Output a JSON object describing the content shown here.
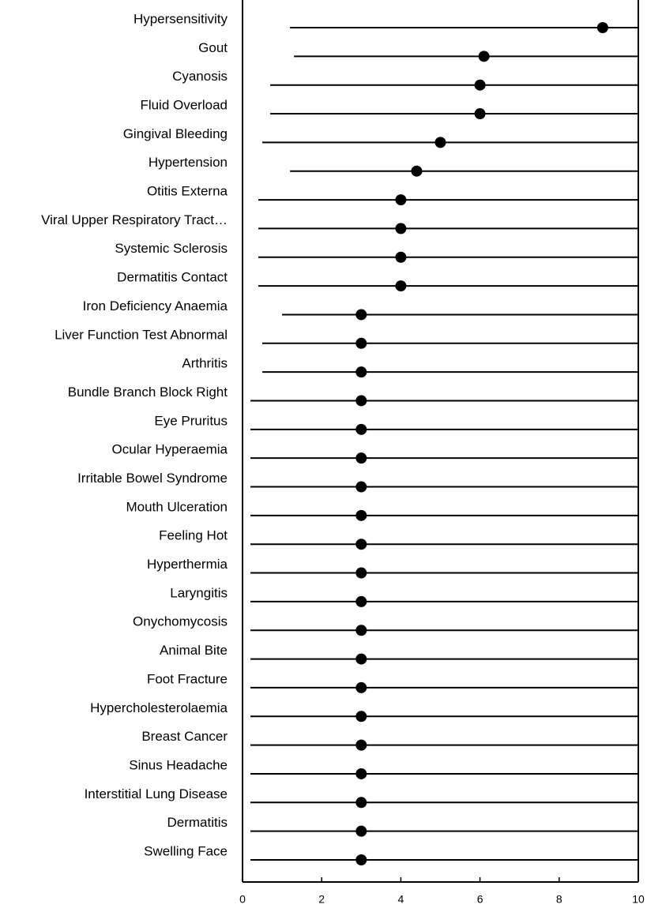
{
  "chart_data": {
    "type": "dot",
    "categories": [
      "Hypersensitivity",
      "Gout",
      "Cyanosis",
      "Fluid Overload",
      "Gingival Bleeding",
      "Hypertension",
      "Otitis Externa",
      "Viral Upper Respiratory Tract…",
      "Systemic Sclerosis",
      "Dermatitis Contact",
      "Iron Deficiency Anaemia",
      "Liver Function Test Abnormal",
      "Arthritis",
      "Bundle Branch Block Right",
      "Eye Pruritus",
      "Ocular Hyperaemia",
      "Irritable Bowel Syndrome",
      "Mouth Ulceration",
      "Feeling Hot",
      "Hyperthermia",
      "Laryngitis",
      "Onychomycosis",
      "Animal Bite",
      "Foot Fracture",
      "Hypercholesterolaemia",
      "Breast Cancer",
      "Sinus Headache",
      "Interstitial Lung Disease",
      "Dermatitis",
      "Swelling Face"
    ],
    "values": [
      9.1,
      6.1,
      6.0,
      6.0,
      5.0,
      4.4,
      4.0,
      4.0,
      4.0,
      4.0,
      3.0,
      3.0,
      3.0,
      3.0,
      3.0,
      3.0,
      3.0,
      3.0,
      3.0,
      3.0,
      3.0,
      3.0,
      3.0,
      3.0,
      3.0,
      3.0,
      3.0,
      3.0,
      3.0,
      3.0
    ],
    "lower": [
      1.2,
      1.3,
      0.7,
      0.7,
      0.5,
      1.2,
      0.4,
      0.4,
      0.4,
      0.4,
      1.0,
      0.5,
      0.5,
      0.2,
      0.2,
      0.2,
      0.2,
      0.2,
      0.2,
      0.2,
      0.2,
      0.2,
      0.2,
      0.2,
      0.2,
      0.2,
      0.2,
      0.2,
      0.2,
      0.2
    ],
    "color": "#000000",
    "xlim": [
      0,
      10
    ],
    "xticks": [
      0,
      2,
      4,
      6,
      8,
      10
    ]
  }
}
